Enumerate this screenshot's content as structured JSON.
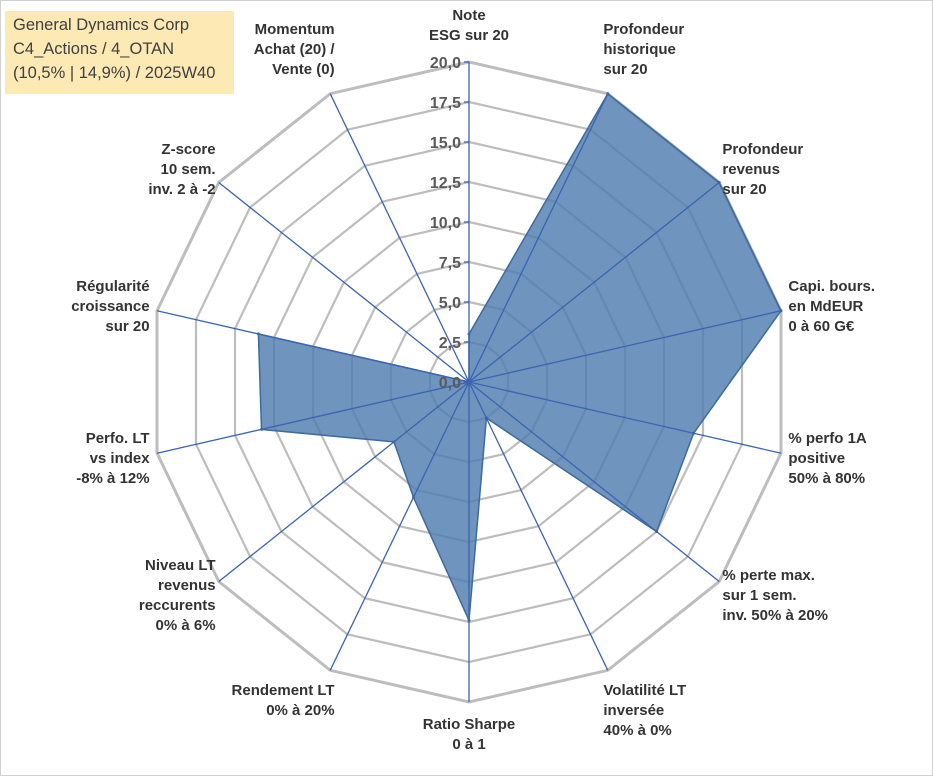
{
  "header": {
    "line1": "General Dynamics Corp",
    "line2": "C4_Actions / 4_OTAN",
    "line3": "(10,5% | 14,9%) / 2025W40"
  },
  "chart_data": {
    "type": "radar",
    "title": "",
    "rmin": 0,
    "rmax": 20,
    "ticks": [
      "0,0",
      "2,5",
      "5,0",
      "7,5",
      "10,0",
      "12,5",
      "15,0",
      "17,5",
      "20,0"
    ],
    "axes": [
      {
        "name": "note-esg",
        "label": [
          "Note",
          "ESG sur 20"
        ]
      },
      {
        "name": "profondeur-historique",
        "label": [
          "Profondeur",
          "historique",
          "sur 20"
        ]
      },
      {
        "name": "profondeur-revenus",
        "label": [
          "Profondeur",
          "revenus",
          "sur 20"
        ]
      },
      {
        "name": "capi-bours",
        "label": [
          "Capi. bours.",
          "en MdEUR",
          "0 à 60 G€"
        ]
      },
      {
        "name": "perfo-1a",
        "label": [
          "% perfo 1A",
          "positive",
          "50% à 80%"
        ]
      },
      {
        "name": "perte-max",
        "label": [
          "% perte max.",
          "sur 1 sem.",
          "inv. 50% à 20%"
        ]
      },
      {
        "name": "volatilite-lt",
        "label": [
          "Volatilité LT",
          "inversée",
          "40% à 0%"
        ]
      },
      {
        "name": "ratio-sharpe",
        "label": [
          "Ratio Sharpe",
          "0 à 1"
        ]
      },
      {
        "name": "rendement-lt",
        "label": [
          "Rendement LT",
          "0% à 20%"
        ]
      },
      {
        "name": "niveau-lt-revenus",
        "label": [
          "Niveau LT",
          "revenus",
          "reccurents",
          "0% à 6%"
        ]
      },
      {
        "name": "perfo-lt-index",
        "label": [
          "Perfo. LT",
          "vs index",
          "-8% à 12%"
        ]
      },
      {
        "name": "regularite-croissance",
        "label": [
          "Régularité",
          "croissance",
          "sur 20"
        ]
      },
      {
        "name": "z-score",
        "label": [
          "Z-score",
          "10 sem.",
          "inv. 2 à -2"
        ]
      },
      {
        "name": "momentum",
        "label": [
          "Momentum",
          "Achat (20) /",
          "Vente (0)"
        ]
      }
    ],
    "series": [
      {
        "name": "General Dynamics Corp",
        "values": [
          3.0,
          20.0,
          20.0,
          20.0,
          14.4,
          15.0,
          2.5,
          14.9,
          8.0,
          6.0,
          13.3,
          13.5,
          0.0,
          0.0
        ],
        "color": "#4f7db0",
        "stroke": "#3e6a9c"
      }
    ],
    "grid_color": "#bdbdbd",
    "axis_color": "#3a64b0"
  }
}
